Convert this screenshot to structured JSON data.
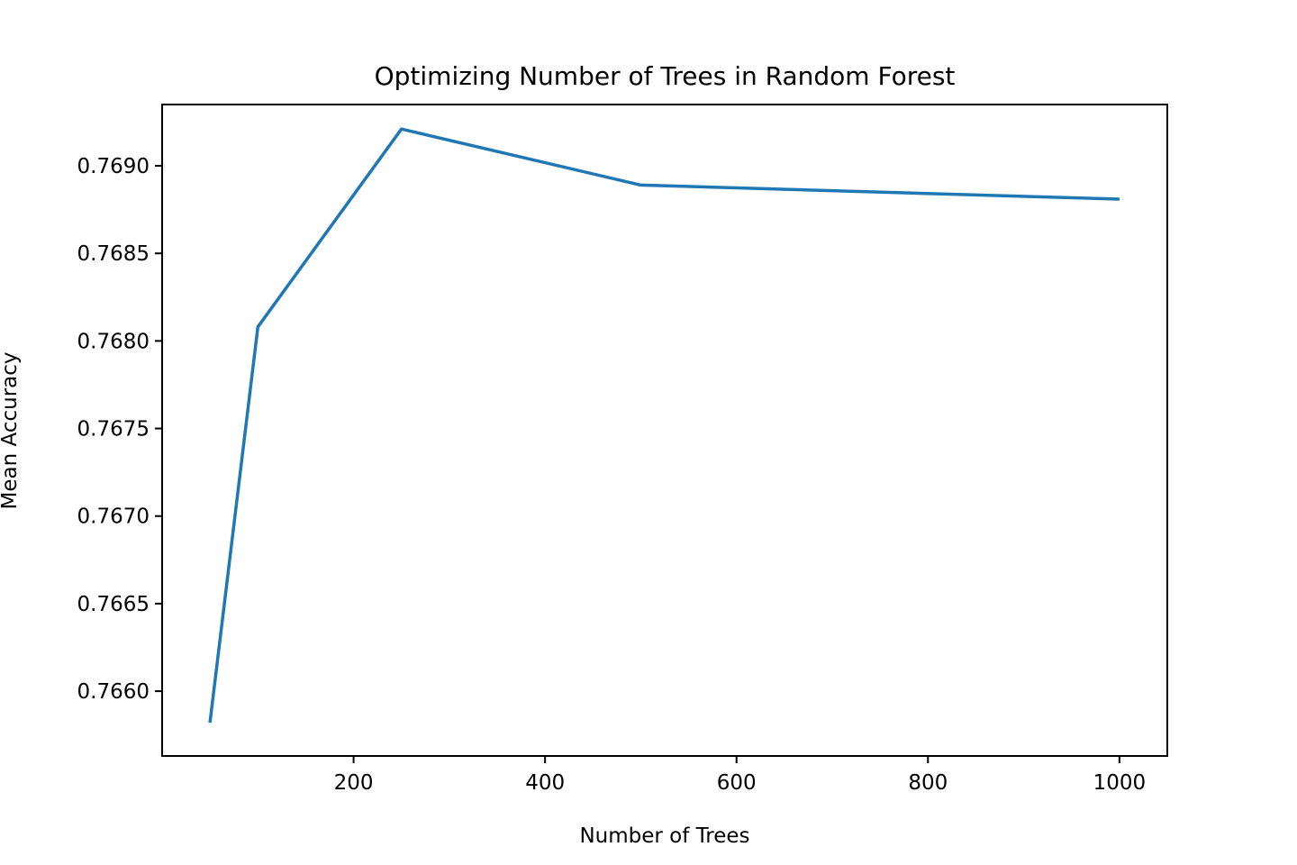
{
  "chart_data": {
    "type": "line",
    "title": "Optimizing Number of Trees in Random Forest",
    "xlabel": "Number of Trees",
    "ylabel": "Mean Accuracy",
    "xlim": [
      0,
      1050
    ],
    "ylim": [
      0.76563,
      0.76935
    ],
    "grid": false,
    "x_ticks": [
      200,
      400,
      600,
      800,
      1000
    ],
    "x_tick_labels": [
      "200",
      "400",
      "600",
      "800",
      "1000"
    ],
    "y_ticks": [
      0.766,
      0.7665,
      0.767,
      0.7675,
      0.768,
      0.7685,
      0.769
    ],
    "y_tick_labels": [
      "0.7660",
      "0.7665",
      "0.7670",
      "0.7675",
      "0.7680",
      "0.7685",
      "0.7690"
    ],
    "series": [
      {
        "color": "#1f77b4",
        "x": [
          50,
          100,
          250,
          500,
          1000
        ],
        "y": [
          0.76582,
          0.76808,
          0.76921,
          0.76889,
          0.76881
        ]
      }
    ]
  }
}
